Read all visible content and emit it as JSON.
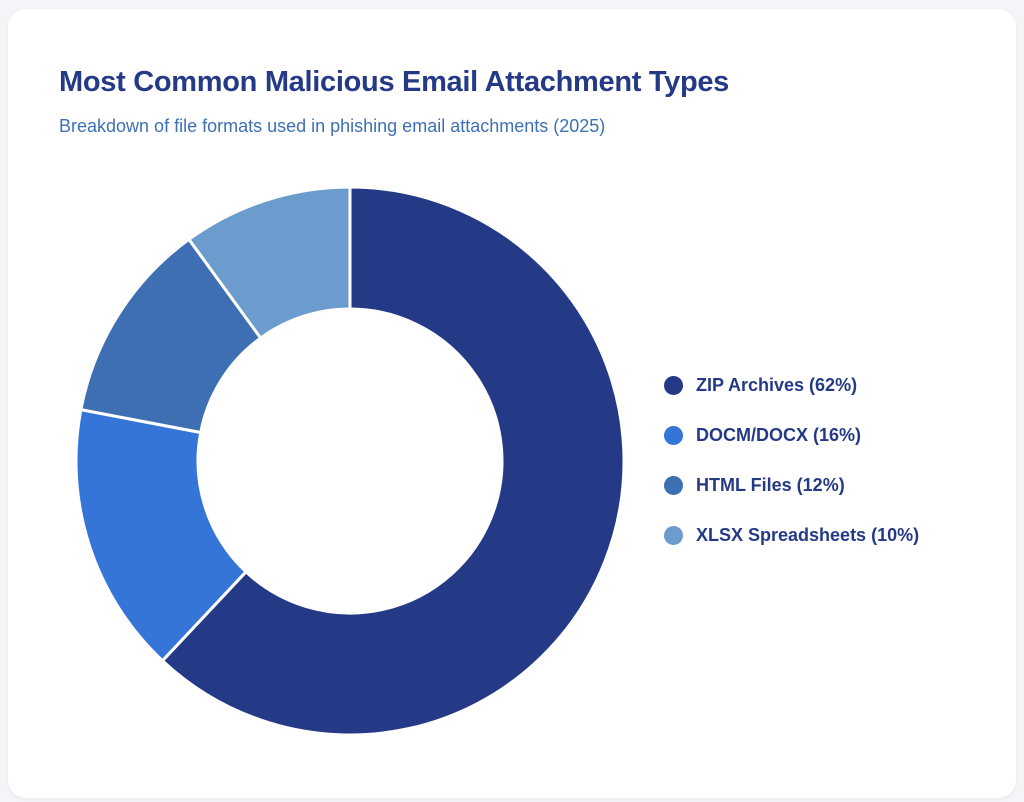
{
  "card": {
    "title": "Most Common Malicious Email Attachment Types",
    "subtitle": "Breakdown of file formats used in phishing email attachments (2025)"
  },
  "colors": {
    "title": "#253a87",
    "subtitle": "#3e70b5",
    "background": "#f4f5f9",
    "card": "#ffffff"
  },
  "legend": {
    "items": [
      {
        "label": "ZIP Archives (62%)",
        "color": "#253a87"
      },
      {
        "label": "DOCM/DOCX (16%)",
        "color": "#3575d7"
      },
      {
        "label": "HTML Files (12%)",
        "color": "#3d6fb2"
      },
      {
        "label": "XLSX Spreadsheets (10%)",
        "color": "#6b9ccd"
      }
    ]
  },
  "chart_data": {
    "type": "pie",
    "variant": "doughnut",
    "title": "Most Common Malicious Email Attachment Types",
    "subtitle": "Breakdown of file formats used in phishing email attachments (2025)",
    "categories": [
      "ZIP Archives",
      "DOCM/DOCX",
      "HTML Files",
      "XLSX Spreadsheets"
    ],
    "values": [
      62,
      16,
      12,
      10
    ],
    "unit": "%",
    "colors": [
      "#253a87",
      "#3575d7",
      "#3d6fb2",
      "#6b9ccd"
    ],
    "start_angle_deg": 0,
    "direction": "clockwise",
    "legend_position": "right",
    "grid": false
  }
}
